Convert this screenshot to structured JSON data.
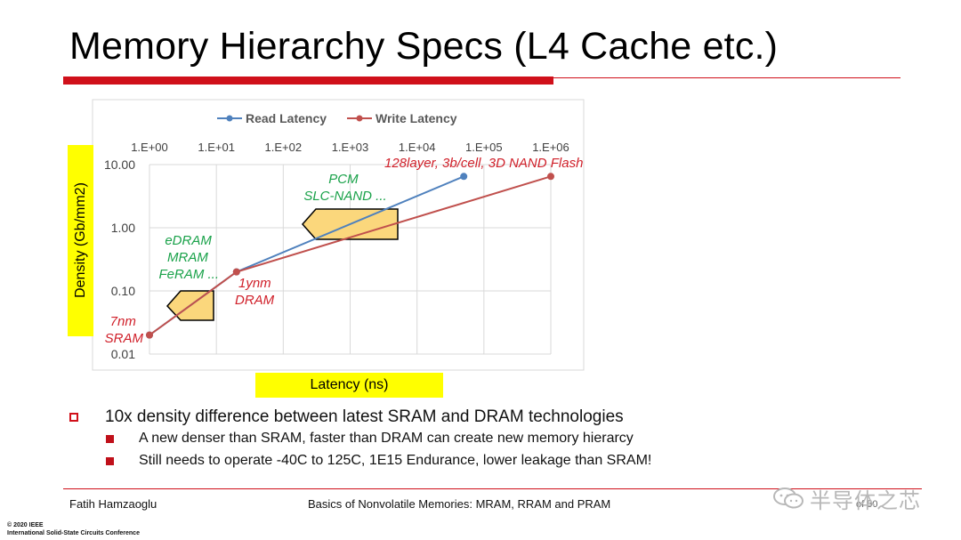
{
  "slide": {
    "title": "Memory Hierarchy Specs (L4 Cache etc.)",
    "colors": {
      "accent": "#d0101a",
      "highlight": "#ffff00"
    }
  },
  "chart_data": {
    "type": "line",
    "legend": {
      "read": "Read Latency",
      "write": "Write Latency"
    },
    "xlabel": "Latency (ns)",
    "ylabel": "Density (Gb/mm2)",
    "x_scale": "log",
    "y_scale": "log",
    "xlim": [
      1,
      1000000
    ],
    "ylim": [
      0.01,
      10
    ],
    "x_ticks": [
      1,
      10,
      100,
      1000,
      10000,
      100000,
      1000000
    ],
    "x_tick_labels": [
      "1.E+00",
      "1.E+01",
      "1.E+02",
      "1.E+03",
      "1.E+04",
      "1.E+05",
      "1.E+06"
    ],
    "y_ticks": [
      10,
      1,
      0.1,
      0.01
    ],
    "y_tick_labels": [
      "10.00",
      "1.00",
      "0.10",
      "0.01"
    ],
    "series": [
      {
        "name": "Read Latency",
        "color": "#4f81bd",
        "x": [
          1,
          20,
          50000
        ],
        "y": [
          0.02,
          0.2,
          6.5
        ]
      },
      {
        "name": "Write Latency",
        "color": "#c0504d",
        "x": [
          1,
          20,
          1000000
        ],
        "y": [
          0.02,
          0.2,
          6.5
        ]
      }
    ],
    "annotations": [
      {
        "id": "sram",
        "lines": [
          "7nm",
          "SRAM"
        ],
        "color": "#d0202a"
      },
      {
        "id": "dram",
        "lines": [
          "1ynm",
          "DRAM"
        ],
        "color": "#d0202a"
      },
      {
        "id": "nand",
        "lines": [
          "128layer, 3b/cell, 3D NAND Flash"
        ],
        "color": "#d0202a"
      },
      {
        "id": "emem",
        "lines": [
          "eDRAM",
          "MRAM",
          "FeRAM ..."
        ],
        "color": "#1aa24a"
      },
      {
        "id": "pcm",
        "lines": [
          "PCM",
          "SLC-NAND ..."
        ],
        "color": "#1aa24a"
      }
    ]
  },
  "bullets": {
    "main": "10x density difference between latest SRAM and DRAM technologies",
    "subs": [
      "A new denser than SRAM, faster than DRAM can create new memory hierarcy",
      "Still needs to operate -40C to 125C, 1E15 Endurance, lower leakage than SRAM!"
    ]
  },
  "footer": {
    "author": "Fatih Hamzaoglu",
    "talk": "Basics of Nonvolatile Memories: MRAM, RRAM and PRAM",
    "page": "of 50",
    "watermark": "半导体之芯",
    "copyright": [
      "© 2020 IEEE",
      "International Solid-State Circuits Conference"
    ]
  }
}
